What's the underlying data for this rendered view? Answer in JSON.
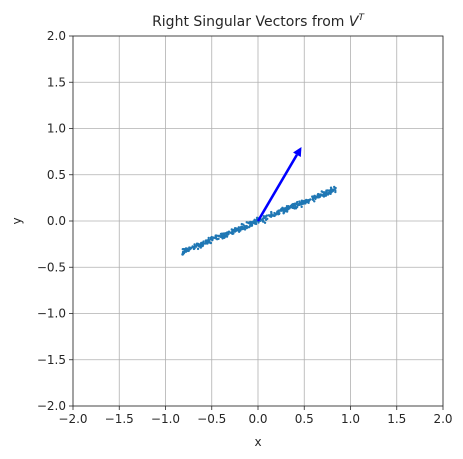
{
  "chart_data": {
    "type": "scatter",
    "title": {
      "prefix": "Right Singular Vectors from ",
      "math_base": "V",
      "math_sup": "T"
    },
    "xlabel": "x",
    "ylabel": "y",
    "xlim": [
      -2.0,
      2.0
    ],
    "ylim": [
      -2.0,
      2.0
    ],
    "xticks": [
      -2.0,
      -1.5,
      -1.0,
      -0.5,
      0.0,
      0.5,
      1.0,
      1.5,
      2.0
    ],
    "yticks": [
      -2.0,
      -1.5,
      -1.0,
      -0.5,
      0.0,
      0.5,
      1.0,
      1.5,
      2.0
    ],
    "xtick_labels": [
      "−2.0",
      "−1.5",
      "−1.0",
      "−0.5",
      "0.0",
      "0.5",
      "1.0",
      "1.5",
      "2.0"
    ],
    "ytick_labels": [
      "−2.0",
      "−1.5",
      "−1.0",
      "−0.5",
      "0.0",
      "0.5",
      "1.0",
      "1.5",
      "2.0"
    ],
    "grid": true,
    "scatter": {
      "color": "#1f77b4",
      "x_range": [
        -0.82,
        0.84
      ],
      "slope": 0.41,
      "spread": 0.035,
      "point_count": 500
    },
    "vectors": [
      {
        "x0": 0.0,
        "y0": 0.0,
        "dx": 0.47,
        "dy": 0.8,
        "color": "#0000ff"
      }
    ]
  }
}
